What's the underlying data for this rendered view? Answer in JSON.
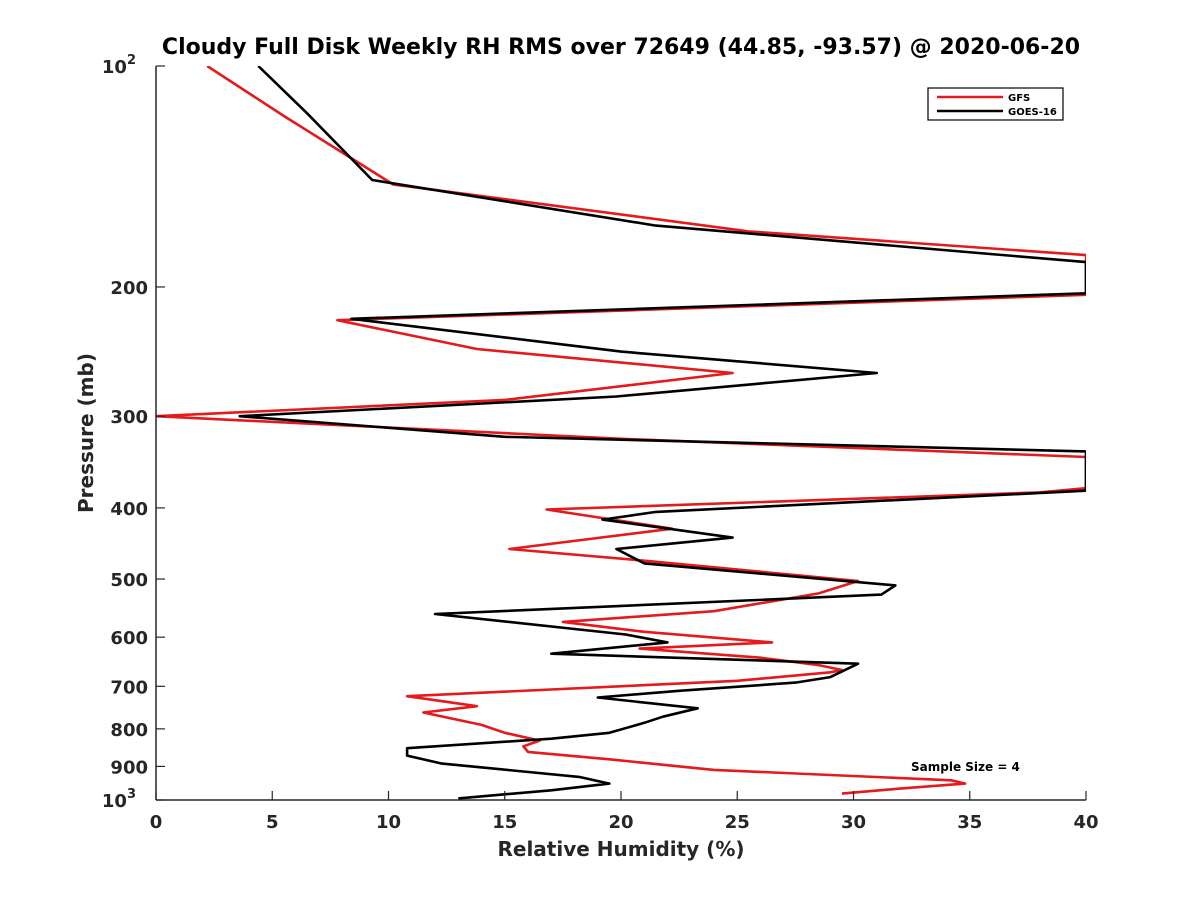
{
  "chart_data": {
    "type": "line",
    "title": "Cloudy Full Disk Weekly RH RMS over 72649 (44.85, -93.57) @ 2020-06-20",
    "xlabel": "Relative Humidity (%)",
    "ylabel": "Pressure (mb)",
    "xlim": [
      0,
      40
    ],
    "ylim": [
      100,
      1000
    ],
    "yscale": "log",
    "yreverse": true,
    "grid": false,
    "legend_position": "top-right",
    "x_ticks": [
      "0",
      "5",
      "10",
      "15",
      "20",
      "25",
      "30",
      "35",
      "40"
    ],
    "y_ticks": [
      {
        "value": 100,
        "label": "10",
        "exp": "2"
      },
      {
        "value": 200,
        "label": "200"
      },
      {
        "value": 300,
        "label": "300"
      },
      {
        "value": 400,
        "label": "400"
      },
      {
        "value": 500,
        "label": "500"
      },
      {
        "value": 600,
        "label": "600"
      },
      {
        "value": 700,
        "label": "700"
      },
      {
        "value": 800,
        "label": "800"
      },
      {
        "value": 900,
        "label": "900"
      },
      {
        "value": 1000,
        "label": "10",
        "exp": "3"
      }
    ],
    "annotation": "Sample Size = 4",
    "series": [
      {
        "name": "GFS",
        "color": "#e41a1c",
        "x": [
          2.2,
          5.5,
          10.2,
          25.5,
          40.0,
          40.0,
          7.8,
          13.8,
          24.8,
          15.0,
          0.0,
          20.0,
          40.0,
          40.0,
          38.0,
          16.8,
          22.2,
          15.2,
          21.0,
          30.2,
          28.5,
          24.0,
          17.5,
          21.0,
          26.5,
          20.8,
          26.0,
          28.5,
          29.5,
          29.0,
          25.0,
          10.8,
          13.8,
          11.5,
          14.0,
          15.0,
          16.5,
          15.8,
          16.0,
          19.5,
          24.0,
          34.2,
          34.8,
          32.0,
          29.5
        ],
        "y": [
          100,
          117,
          145,
          168,
          181,
          205,
          222,
          243,
          262,
          285,
          300,
          322,
          341,
          376,
          381,
          402,
          427,
          455,
          472,
          503,
          523,
          553,
          572,
          590,
          610,
          622,
          640,
          655,
          665,
          670,
          688,
          722,
          745,
          760,
          790,
          810,
          830,
          845,
          860,
          880,
          910,
          940,
          950,
          965,
          980
        ]
      },
      {
        "name": "GOES-16",
        "color": "#000000",
        "x": [
          4.4,
          6.5,
          9.3,
          21.5,
          40.0,
          40.0,
          8.4,
          20.0,
          31.0,
          19.8,
          3.6,
          15.0,
          40.0,
          40.0,
          21.5,
          19.2,
          24.8,
          19.8,
          21.0,
          31.8,
          31.2,
          12.0,
          20.2,
          22.0,
          17.0,
          30.2,
          29.0,
          27.5,
          22.5,
          19.0,
          23.3,
          21.8,
          21.0,
          19.5,
          17.0,
          10.8,
          10.8,
          12.3,
          18.2,
          19.5,
          17.0,
          13.0
        ],
        "y": [
          100,
          116,
          143,
          165,
          185,
          204,
          221,
          245,
          262,
          282,
          300,
          320,
          335,
          379,
          405,
          415,
          439,
          455,
          476,
          510,
          525,
          558,
          595,
          610,
          632,
          652,
          680,
          692,
          710,
          725,
          750,
          770,
          785,
          810,
          825,
          850,
          870,
          892,
          930,
          950,
          970,
          995
        ]
      }
    ]
  }
}
